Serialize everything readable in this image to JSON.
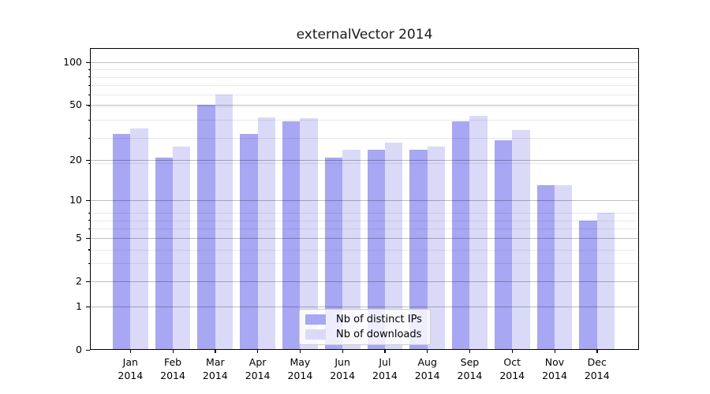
{
  "chart_data": {
    "type": "bar",
    "title": "externalVector 2014",
    "categories": [
      "Jan",
      "Feb",
      "Mar",
      "Apr",
      "May",
      "Jun",
      "Jul",
      "Aug",
      "Sep",
      "Oct",
      "Nov",
      "Dec"
    ],
    "x_tick_second_line": "2014",
    "series": [
      {
        "name": "Nb of distinct IPs",
        "color": "#a7a7f3",
        "values": [
          31,
          21,
          50,
          31,
          38,
          21,
          24,
          24,
          38,
          28,
          13,
          7
        ]
      },
      {
        "name": "Nb of downloads",
        "color": "#dadaf8",
        "values": [
          34,
          25,
          59,
          41,
          40,
          24,
          27,
          25,
          42,
          33,
          13,
          8
        ]
      }
    ],
    "yscale": "log1p",
    "ylim": [
      0,
      126
    ],
    "y_major_ticks": [
      0,
      1,
      2,
      5,
      10,
      20,
      50,
      100
    ],
    "y_minor_ticks": [
      3,
      4,
      6,
      7,
      8,
      19,
      29,
      39,
      49,
      59,
      69,
      79,
      89
    ],
    "grid": true,
    "gridlines_above_bars": true,
    "legend_position": "lower center",
    "background_color": "#ffffff",
    "spine_color": "#000000"
  }
}
